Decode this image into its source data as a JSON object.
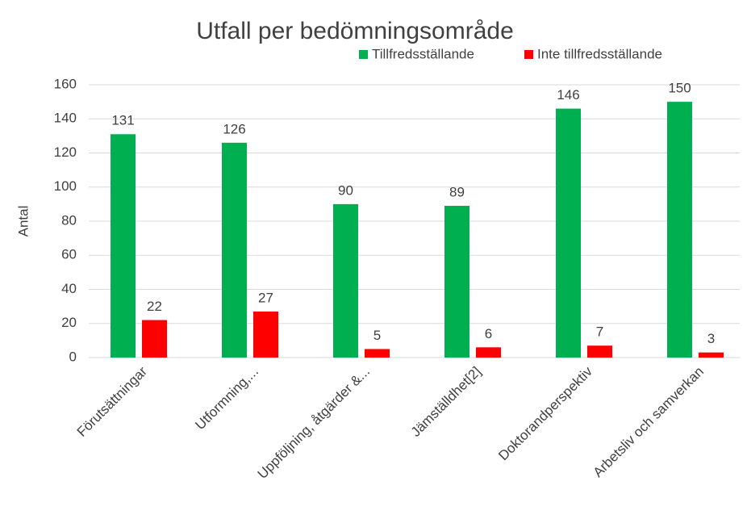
{
  "chart_data": {
    "type": "bar",
    "title": "Utfall per bedömningsområde",
    "categories": [
      "Förutsättningar",
      "Utformning,...",
      "Uppföljning, åtgärder &...",
      "Jämställdhet[2]",
      "Doktorandperspektiv",
      "Arbetsliv och samverkan"
    ],
    "series": [
      {
        "name": "Tillfredsställande",
        "color": "#00b050",
        "values": [
          131,
          126,
          90,
          89,
          146,
          150
        ]
      },
      {
        "name": "Inte tillfredsställande",
        "color": "#ff0000",
        "values": [
          22,
          27,
          5,
          6,
          7,
          3
        ]
      }
    ],
    "ylabel": "Antal",
    "ylim": [
      0,
      160
    ],
    "yticks": [
      0,
      20,
      40,
      60,
      80,
      100,
      120,
      140,
      160
    ],
    "grid": true,
    "legend": "top"
  }
}
